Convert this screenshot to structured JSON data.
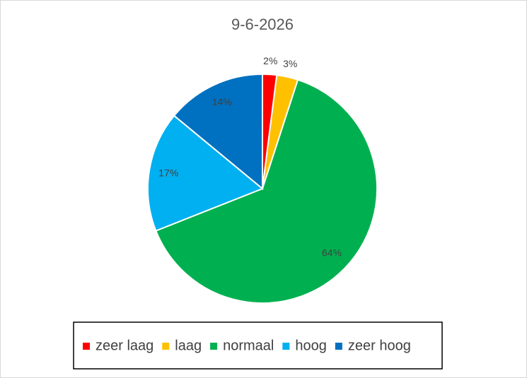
{
  "chart_data": {
    "type": "pie",
    "title": "9-6-2026",
    "categories": [
      "zeer laag",
      "laag",
      "normaal",
      "hoog",
      "zeer hoog"
    ],
    "values": [
      2,
      3,
      64,
      17,
      14
    ],
    "value_labels": [
      "2%",
      "3%",
      "64%",
      "17%",
      "14%"
    ],
    "colors": [
      "#ff0000",
      "#ffc000",
      "#00b050",
      "#00b0f0",
      "#0070c0"
    ],
    "legend": "bottom"
  }
}
